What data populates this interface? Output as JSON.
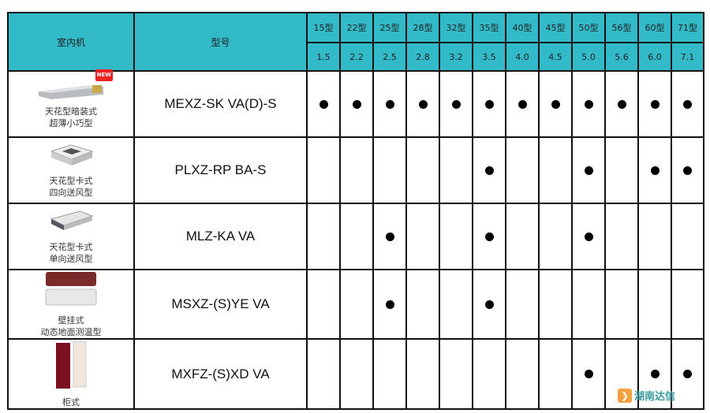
{
  "header": {
    "unit_col": "室内机",
    "model_col": "型号",
    "sizes": [
      "15型",
      "22型",
      "25型",
      "28型",
      "32型",
      "35型",
      "40型",
      "45型",
      "50型",
      "56型",
      "60型",
      "71型"
    ],
    "capacities": [
      "1.5",
      "2.2",
      "2.5",
      "2.8",
      "3.2",
      "3.5",
      "4.0",
      "4.5",
      "5.0",
      "5.6",
      "6.0",
      "7.1"
    ]
  },
  "rows": [
    {
      "name1": "天花型暗装式",
      "name2": "超薄小巧型",
      "model": "MEXZ-SK VA(D)-S",
      "badge": "NEW",
      "image": "ducted-unit",
      "avail": [
        1,
        1,
        1,
        1,
        1,
        1,
        1,
        1,
        1,
        1,
        1,
        1
      ]
    },
    {
      "name1": "天花型卡式",
      "name2": "四向送风型",
      "model": "PLXZ-RP BA-S",
      "image": "cassette-4way",
      "avail": [
        0,
        0,
        0,
        0,
        0,
        1,
        0,
        0,
        1,
        0,
        1,
        1
      ]
    },
    {
      "name1": "天花型卡式",
      "name2": "单向送风型",
      "model": "MLZ-KA VA",
      "image": "cassette-1way",
      "avail": [
        0,
        0,
        1,
        0,
        0,
        1,
        0,
        0,
        1,
        0,
        0,
        0
      ]
    },
    {
      "name1": "壁挂式",
      "name2": "动态地面测温型",
      "model": "MSXZ-(S)YE VA",
      "image": "wall-mounted",
      "avail": [
        0,
        0,
        1,
        0,
        0,
        1,
        0,
        0,
        0,
        0,
        0,
        0
      ]
    },
    {
      "name1": "柜式",
      "name2": "",
      "model": "MXFZ-(S)XD VA",
      "image": "floor-standing",
      "avail": [
        0,
        0,
        0,
        0,
        0,
        0,
        0,
        0,
        1,
        0,
        1,
        1
      ]
    }
  ],
  "watermark": "湖南达信",
  "colors": {
    "header": "#33bac8",
    "dot": "#000000"
  }
}
